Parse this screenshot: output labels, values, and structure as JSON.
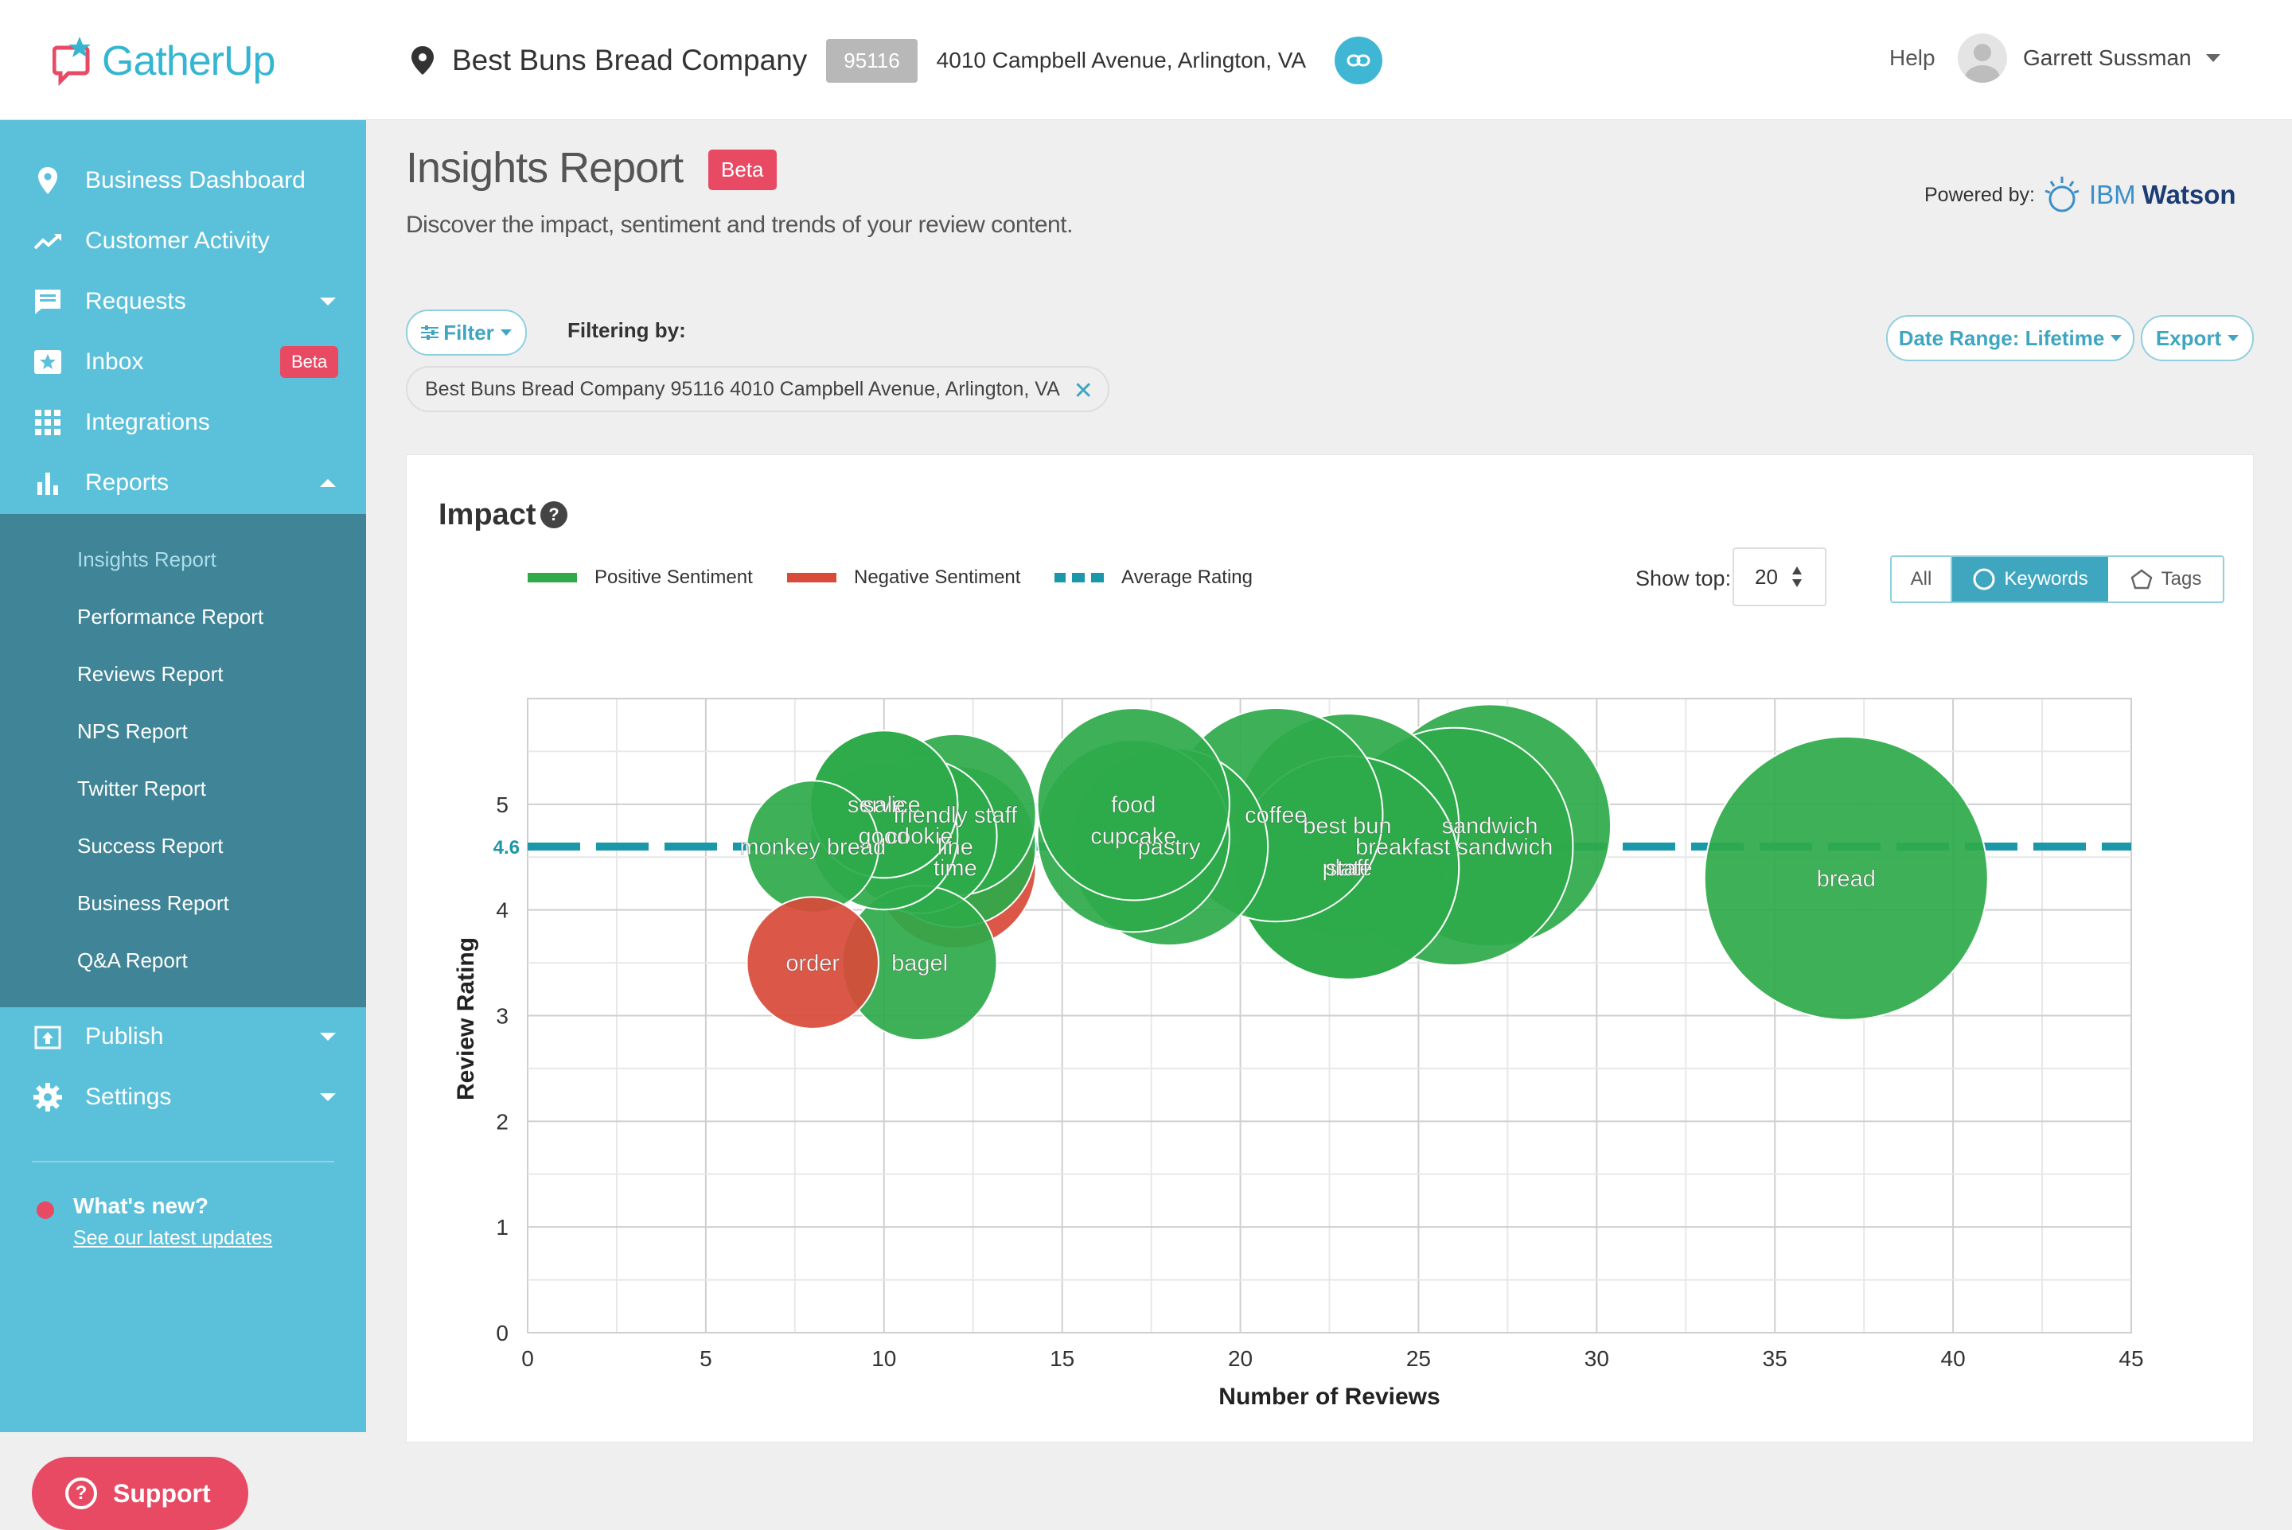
{
  "header": {
    "logo_text": "GatherUp",
    "business_name": "Best Buns Bread Company",
    "zip": "95116",
    "address": "4010 Campbell Avenue, Arlington, VA",
    "help": "Help",
    "user_name": "Garrett Sussman"
  },
  "sidebar": {
    "items": [
      {
        "label": "Business Dashboard",
        "icon": "map-pin-icon"
      },
      {
        "label": "Customer Activity",
        "icon": "trend-line-icon"
      },
      {
        "label": "Requests",
        "icon": "chat-bubble-icon"
      },
      {
        "label": "Inbox",
        "icon": "star-inbox-icon",
        "badge": "Beta"
      },
      {
        "label": "Integrations",
        "icon": "grid-icon"
      },
      {
        "label": "Reports",
        "icon": "bar-chart-icon"
      }
    ],
    "reports_sub": [
      "Insights Report",
      "Performance Report",
      "Reviews Report",
      "NPS Report",
      "Twitter Report",
      "Success Report",
      "Business Report",
      "Q&A Report"
    ],
    "bottom_items": [
      {
        "label": "Publish",
        "icon": "publish-icon"
      },
      {
        "label": "Settings",
        "icon": "gear-icon"
      }
    ],
    "whats_new_title": "What's new?",
    "whats_new_link": "See our latest updates",
    "support": "Support"
  },
  "page": {
    "title": "Insights Report",
    "badge": "Beta",
    "subtitle": "Discover the impact, sentiment and trends of your review content.",
    "powered_by": "Powered by:",
    "ibm": "IBM",
    "watson": "Watson",
    "filter_btn": "Filter",
    "filtering_by": "Filtering by:",
    "filter_chip": "Best Buns Bread Company 95116 4010 Campbell Avenue, Arlington, VA",
    "date_range": "Date Range: Lifetime",
    "export": "Export"
  },
  "impact": {
    "title": "Impact",
    "help": "?",
    "legend": [
      "Positive Sentiment",
      "Negative Sentiment",
      "Average Rating"
    ],
    "show_top_label": "Show top:",
    "show_top_value": "20",
    "toggle": [
      "All",
      "Keywords",
      "Tags"
    ]
  },
  "colors": {
    "accent": "#5bc0d9",
    "positive": "#2eaa4a",
    "negative": "#d84a3a",
    "average": "#1a97a8",
    "badge": "#e84a64"
  },
  "chart_data": {
    "type": "scatter",
    "xlabel": "Number of Reviews",
    "ylabel": "Review Rating",
    "xlim": [
      0,
      45
    ],
    "ylim": [
      0,
      6
    ],
    "xticks": [
      0,
      5,
      10,
      15,
      20,
      25,
      30,
      35,
      40,
      45
    ],
    "yticks": [
      0,
      1,
      2,
      3,
      4,
      5
    ],
    "average_rating": 4.6,
    "average_label": "4.6",
    "grid": true,
    "points": [
      {
        "label": "bread",
        "x": 37,
        "y": 4.3,
        "size": 37,
        "sentiment": "positive"
      },
      {
        "label": "sandwich",
        "x": 27,
        "y": 4.8,
        "size": 27,
        "sentiment": "positive"
      },
      {
        "label": "breakfast sandwich",
        "x": 26,
        "y": 4.6,
        "size": 26,
        "sentiment": "positive"
      },
      {
        "label": "best bun",
        "x": 23,
        "y": 4.8,
        "size": 23,
        "sentiment": "positive"
      },
      {
        "label": "plate",
        "x": 23,
        "y": 4.4,
        "size": 23,
        "sentiment": "positive"
      },
      {
        "label": "staff",
        "x": 23,
        "y": 4.4,
        "size": 23,
        "sentiment": "positive"
      },
      {
        "label": "coffee",
        "x": 21,
        "y": 4.9,
        "size": 21,
        "sentiment": "positive"
      },
      {
        "label": "pastry",
        "x": 18,
        "y": 4.6,
        "size": 18,
        "sentiment": "positive"
      },
      {
        "label": "cupcake",
        "x": 17,
        "y": 4.7,
        "size": 17,
        "sentiment": "positive"
      },
      {
        "label": "food",
        "x": 17,
        "y": 5.0,
        "size": 17,
        "sentiment": "positive"
      },
      {
        "label": "time",
        "x": 12,
        "y": 4.4,
        "size": 12,
        "sentiment": "negative"
      },
      {
        "label": "line",
        "x": 12,
        "y": 4.6,
        "size": 12,
        "sentiment": "positive"
      },
      {
        "label": "friendly staff",
        "x": 12,
        "y": 4.9,
        "size": 12,
        "sentiment": "positive"
      },
      {
        "label": "cookie",
        "x": 11,
        "y": 4.7,
        "size": 11,
        "sentiment": "positive"
      },
      {
        "label": "bagel",
        "x": 11,
        "y": 3.5,
        "size": 11,
        "sentiment": "positive"
      },
      {
        "label": "good",
        "x": 10,
        "y": 4.7,
        "size": 10,
        "sentiment": "positive"
      },
      {
        "label": "service",
        "x": 10,
        "y": 5.0,
        "size": 10,
        "sentiment": "positive"
      },
      {
        "label": "sale",
        "x": 10,
        "y": 5.0,
        "size": 10,
        "sentiment": "positive"
      },
      {
        "label": "monkey bread",
        "x": 8,
        "y": 4.6,
        "size": 8,
        "sentiment": "positive"
      },
      {
        "label": "order",
        "x": 8,
        "y": 3.5,
        "size": 8,
        "sentiment": "negative"
      }
    ]
  }
}
